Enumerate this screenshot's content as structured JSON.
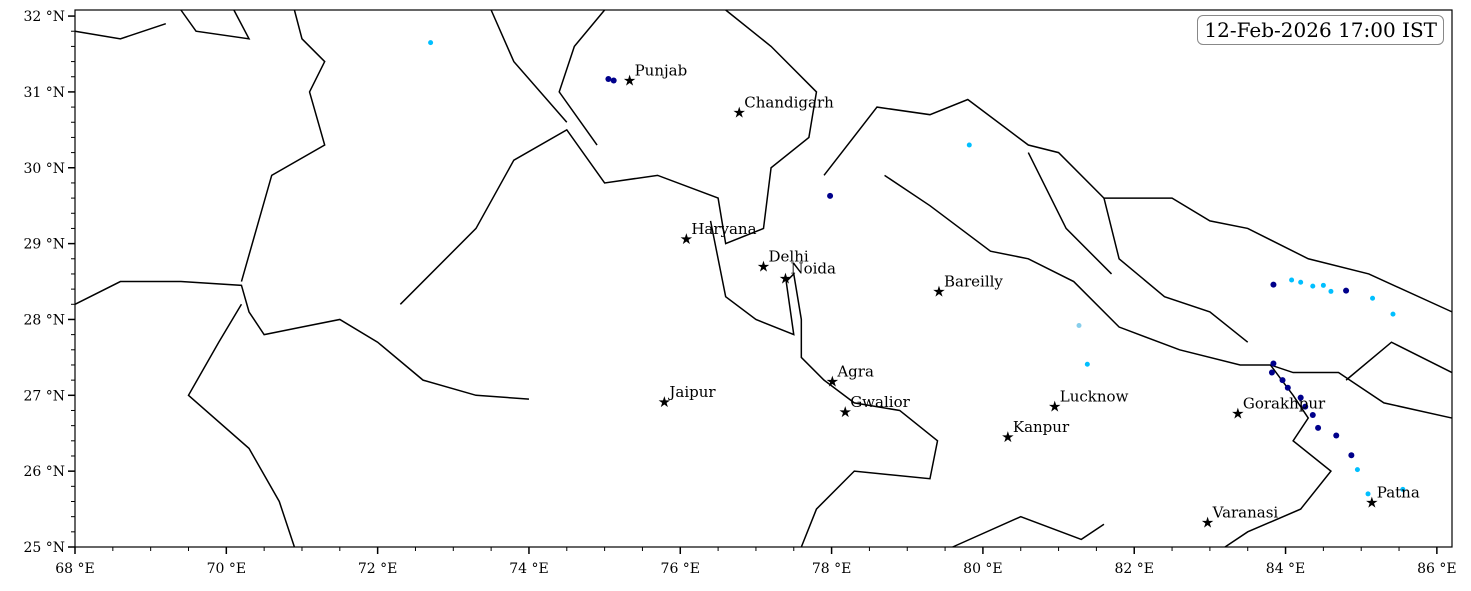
{
  "timestamp": "12-Feb-2026 17:00 IST",
  "extent": {
    "lon": [
      68,
      86.2
    ],
    "lat": [
      25,
      32.08
    ]
  },
  "x_ticks": [
    {
      "value": 68,
      "label": "68 °E"
    },
    {
      "value": 70,
      "label": "70 °E"
    },
    {
      "value": 72,
      "label": "72 °E"
    },
    {
      "value": 74,
      "label": "74 °E"
    },
    {
      "value": 76,
      "label": "76 °E"
    },
    {
      "value": 78,
      "label": "78 °E"
    },
    {
      "value": 80,
      "label": "80 °E"
    },
    {
      "value": 82,
      "label": "82 °E"
    },
    {
      "value": 84,
      "label": "84 °E"
    },
    {
      "value": 86,
      "label": "86 °E"
    }
  ],
  "y_ticks": [
    {
      "value": 25,
      "label": "25 °N"
    },
    {
      "value": 26,
      "label": "26 °N"
    },
    {
      "value": 27,
      "label": "27 °N"
    },
    {
      "value": 28,
      "label": "28 °N"
    },
    {
      "value": 29,
      "label": "29 °N"
    },
    {
      "value": 30,
      "label": "30 °N"
    },
    {
      "value": 31,
      "label": "31 °N"
    },
    {
      "value": 32,
      "label": "32 °N"
    }
  ],
  "cities": [
    {
      "name": "Punjab",
      "lon": 75.33,
      "lat": 31.15
    },
    {
      "name": "Chandigarh",
      "lon": 76.78,
      "lat": 30.73
    },
    {
      "name": "Haryana",
      "lon": 76.08,
      "lat": 29.06
    },
    {
      "name": "Delhi",
      "lon": 77.1,
      "lat": 28.7
    },
    {
      "name": "Noida",
      "lon": 77.39,
      "lat": 28.54
    },
    {
      "name": "Bareilly",
      "lon": 79.42,
      "lat": 28.37
    },
    {
      "name": "Agra",
      "lon": 78.01,
      "lat": 27.18
    },
    {
      "name": "Jaipur",
      "lon": 75.79,
      "lat": 26.91
    },
    {
      "name": "Gwalior",
      "lon": 78.18,
      "lat": 26.78
    },
    {
      "name": "Lucknow",
      "lon": 80.95,
      "lat": 26.85
    },
    {
      "name": "Kanpur",
      "lon": 80.33,
      "lat": 26.45
    },
    {
      "name": "Gorakhpur",
      "lon": 83.37,
      "lat": 26.76
    },
    {
      "name": "Varanasi",
      "lon": 82.97,
      "lat": 25.32
    },
    {
      "name": "Patna",
      "lon": 85.14,
      "lat": 25.59
    }
  ],
  "echo_colors": {
    "light": "#87ceeb",
    "moderate": "#00bfff",
    "heavy": "#00008b"
  },
  "echoes": [
    {
      "lon": 75.05,
      "lat": 31.17,
      "level": "heavy"
    },
    {
      "lon": 75.12,
      "lat": 31.15,
      "level": "heavy"
    },
    {
      "lon": 72.7,
      "lat": 31.65,
      "level": "moderate"
    },
    {
      "lon": 79.82,
      "lat": 30.3,
      "level": "moderate"
    },
    {
      "lon": 77.98,
      "lat": 29.63,
      "level": "heavy"
    },
    {
      "lon": 81.27,
      "lat": 27.92,
      "level": "light"
    },
    {
      "lon": 81.38,
      "lat": 27.41,
      "level": "moderate"
    },
    {
      "lon": 83.84,
      "lat": 28.46,
      "level": "heavy"
    },
    {
      "lon": 84.08,
      "lat": 28.52,
      "level": "moderate"
    },
    {
      "lon": 84.2,
      "lat": 28.49,
      "level": "moderate"
    },
    {
      "lon": 84.36,
      "lat": 28.44,
      "level": "moderate"
    },
    {
      "lon": 84.6,
      "lat": 28.37,
      "level": "moderate"
    },
    {
      "lon": 84.8,
      "lat": 28.38,
      "level": "heavy"
    },
    {
      "lon": 84.5,
      "lat": 28.45,
      "level": "moderate"
    },
    {
      "lon": 85.42,
      "lat": 28.07,
      "level": "moderate"
    },
    {
      "lon": 85.15,
      "lat": 28.28,
      "level": "moderate"
    },
    {
      "lon": 83.84,
      "lat": 27.42,
      "level": "heavy"
    },
    {
      "lon": 83.82,
      "lat": 27.3,
      "level": "heavy"
    },
    {
      "lon": 83.96,
      "lat": 27.2,
      "level": "heavy"
    },
    {
      "lon": 84.03,
      "lat": 27.1,
      "level": "heavy"
    },
    {
      "lon": 84.2,
      "lat": 26.97,
      "level": "heavy"
    },
    {
      "lon": 84.26,
      "lat": 26.85,
      "level": "heavy"
    },
    {
      "lon": 84.36,
      "lat": 26.74,
      "level": "heavy"
    },
    {
      "lon": 84.43,
      "lat": 26.57,
      "level": "heavy"
    },
    {
      "lon": 84.67,
      "lat": 26.47,
      "level": "heavy"
    },
    {
      "lon": 84.87,
      "lat": 26.21,
      "level": "heavy"
    },
    {
      "lon": 84.95,
      "lat": 26.02,
      "level": "moderate"
    },
    {
      "lon": 85.09,
      "lat": 25.7,
      "level": "moderate"
    },
    {
      "lon": 85.55,
      "lat": 25.76,
      "level": "moderate"
    }
  ]
}
